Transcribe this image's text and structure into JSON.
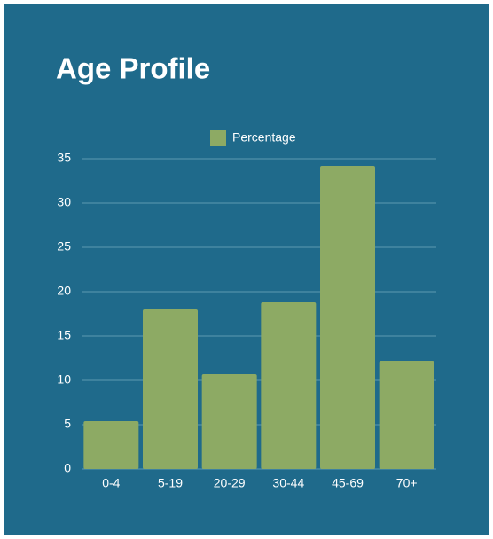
{
  "chart_data": {
    "type": "bar",
    "title": "Age Profile",
    "categories": [
      "0-4",
      "5-19",
      "20-29",
      "30-44",
      "45-69",
      "70+"
    ],
    "series": [
      {
        "name": "Percentage",
        "color": "#8daa64",
        "values": [
          5.4,
          18.0,
          10.7,
          18.8,
          34.2,
          12.2
        ]
      }
    ],
    "ylim": [
      0,
      35
    ],
    "yticks": [
      0,
      5,
      10,
      15,
      20,
      25,
      30,
      35
    ],
    "grid": true,
    "legend": "top"
  }
}
